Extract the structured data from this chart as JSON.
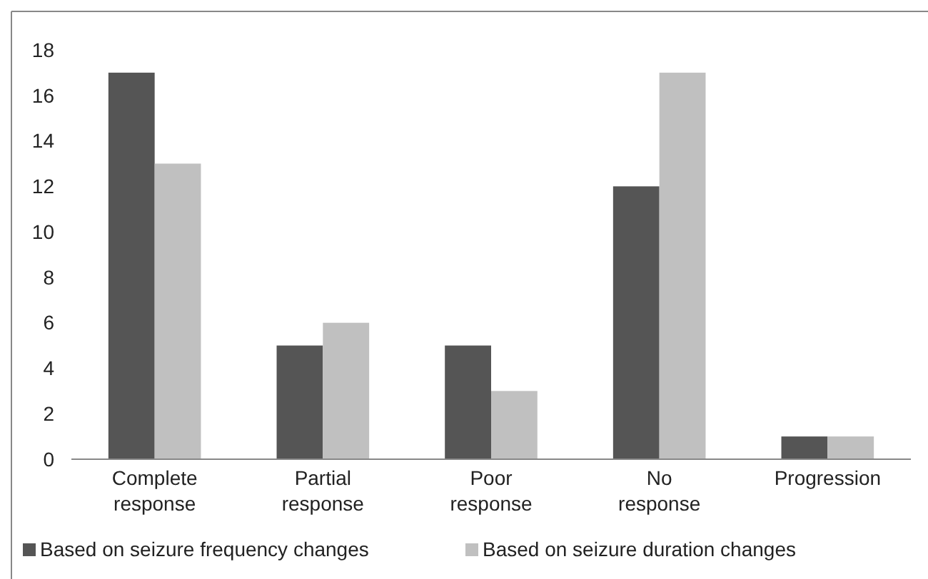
{
  "chart_data": {
    "type": "bar",
    "categories": [
      "Complete response",
      "Partial response",
      "Poor response",
      "No response",
      "Progression"
    ],
    "series": [
      {
        "name": "Based on seizure frequency changes",
        "color": "#555555",
        "values": [
          17,
          5,
          5,
          12,
          1
        ]
      },
      {
        "name": "Based on seizure duration changes",
        "color": "#c0c0c0",
        "values": [
          13,
          6,
          3,
          17,
          1
        ]
      }
    ],
    "ylim": [
      0,
      18
    ],
    "yticks": [
      0,
      2,
      4,
      6,
      8,
      10,
      12,
      14,
      16,
      18
    ],
    "grid": false,
    "legend": "bottom"
  }
}
